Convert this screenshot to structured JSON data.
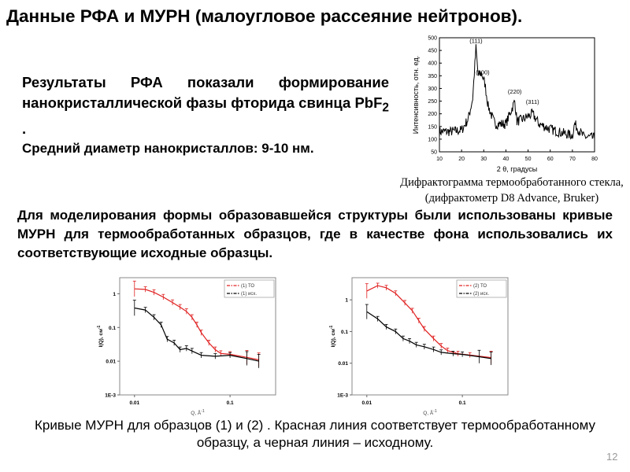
{
  "title": "Данные РФА и МУРН (малоугловое рассеяние нейтронов).",
  "p1": {
    "text_pre": "Результаты РФА показали формирование нанокристаллической фазы фторида свинца PbF",
    "sub": "2",
    "text_post": " .",
    "line2": "Средний диаметр нанокристаллов: 9-10 нм."
  },
  "xrd_caption": "Дифрактограмма термообработанного стекла, (дифрактометр D8 Advance, Bruker)",
  "p2": "Для моделирования формы образовавшейся структуры были использованы кривые МУРН для термообработанных образцов, где в качестве фона использовались их соответствующие исходные образцы.",
  "bottom_caption": "Кривые МУРН для образцов (1) и (2) . Красная линия соответствует термообработанному образцу, а черная линия – исходному.",
  "page_number": "12",
  "chart_data": [
    {
      "type": "line",
      "xlabel": "2 θ, градусы",
      "ylabel": "Интенсивность, отн. ед.",
      "xlim": [
        10,
        80
      ],
      "ylim": [
        50,
        500
      ],
      "xticks": [
        10,
        20,
        30,
        40,
        50,
        60,
        70,
        80
      ],
      "yticks": [
        50,
        100,
        150,
        200,
        250,
        300,
        350,
        400,
        450,
        500
      ],
      "x": [
        10,
        15,
        20,
        23,
        25,
        26.5,
        27.5,
        29,
        30.5,
        32,
        35,
        40,
        44,
        45,
        48,
        52,
        55,
        60,
        65,
        70,
        71,
        75,
        80
      ],
      "values": [
        130,
        130,
        135,
        180,
        260,
        460,
        350,
        360,
        320,
        230,
        160,
        160,
        250,
        170,
        180,
        200,
        160,
        140,
        125,
        115,
        160,
        110,
        105
      ],
      "annotations": [
        "(111)",
        "(200)",
        "(220)",
        "(311)"
      ],
      "annotation_x": [
        26.5,
        29.5,
        44,
        52
      ],
      "annotation_y": [
        480,
        355,
        280,
        240
      ],
      "color": "#000000"
    },
    {
      "type": "line",
      "xlabel": "Q, Å",
      "xlabel_sup": "-1",
      "ylabel": "I(Q), см",
      "ylabel_sup": "-1",
      "xscale": "log",
      "yscale": "log",
      "xlim": [
        0.007,
        0.3
      ],
      "ylim": [
        0.001,
        3
      ],
      "xticks": [
        "0.01",
        "0.1"
      ],
      "yticks": [
        "1E-3",
        "0.01",
        "0.1",
        "1"
      ],
      "series": [
        {
          "name": "(1) ТО",
          "color": "#e02020",
          "x": [
            0.01,
            0.013,
            0.016,
            0.02,
            0.025,
            0.03,
            0.035,
            0.04,
            0.045,
            0.05,
            0.06,
            0.07,
            0.08,
            0.1,
            0.15,
            0.2
          ],
          "values": [
            1.4,
            1.35,
            1.1,
            0.8,
            0.55,
            0.4,
            0.3,
            0.2,
            0.12,
            0.07,
            0.035,
            0.022,
            0.017,
            0.016,
            0.013,
            0.011
          ]
        },
        {
          "name": "(1) исх.",
          "color": "#000000",
          "x": [
            0.01,
            0.013,
            0.016,
            0.019,
            0.022,
            0.026,
            0.03,
            0.035,
            0.04,
            0.05,
            0.07,
            0.1,
            0.15,
            0.2
          ],
          "values": [
            0.38,
            0.33,
            0.2,
            0.12,
            0.045,
            0.035,
            0.022,
            0.024,
            0.02,
            0.015,
            0.014,
            0.015,
            0.012,
            0.01
          ]
        }
      ],
      "legend": "top-right"
    },
    {
      "type": "line",
      "xlabel": "Q, Å",
      "xlabel_sup": "-1",
      "ylabel": "I(Q), см",
      "ylabel_sup": "-1",
      "xscale": "log",
      "yscale": "log",
      "xlim": [
        0.007,
        0.3
      ],
      "ylim": [
        0.001,
        5
      ],
      "xticks": [
        "0.01",
        "0.1"
      ],
      "yticks": [
        "1E-3",
        "0.01",
        "0.1",
        "1"
      ],
      "series": [
        {
          "name": "(2) ТО",
          "color": "#e02020",
          "x": [
            0.01,
            0.013,
            0.016,
            0.02,
            0.025,
            0.03,
            0.035,
            0.04,
            0.05,
            0.06,
            0.07,
            0.09,
            0.12,
            0.2
          ],
          "values": [
            1.9,
            2.8,
            2.4,
            1.6,
            0.8,
            0.45,
            0.22,
            0.12,
            0.06,
            0.035,
            0.025,
            0.02,
            0.018,
            0.015
          ]
        },
        {
          "name": "(2) исх.",
          "color": "#000000",
          "x": [
            0.01,
            0.013,
            0.016,
            0.02,
            0.024,
            0.028,
            0.033,
            0.04,
            0.05,
            0.06,
            0.08,
            0.1,
            0.15,
            0.2
          ],
          "values": [
            0.42,
            0.25,
            0.14,
            0.1,
            0.06,
            0.05,
            0.038,
            0.033,
            0.027,
            0.022,
            0.02,
            0.019,
            0.016,
            0.014
          ]
        }
      ],
      "legend": "top-right"
    }
  ]
}
